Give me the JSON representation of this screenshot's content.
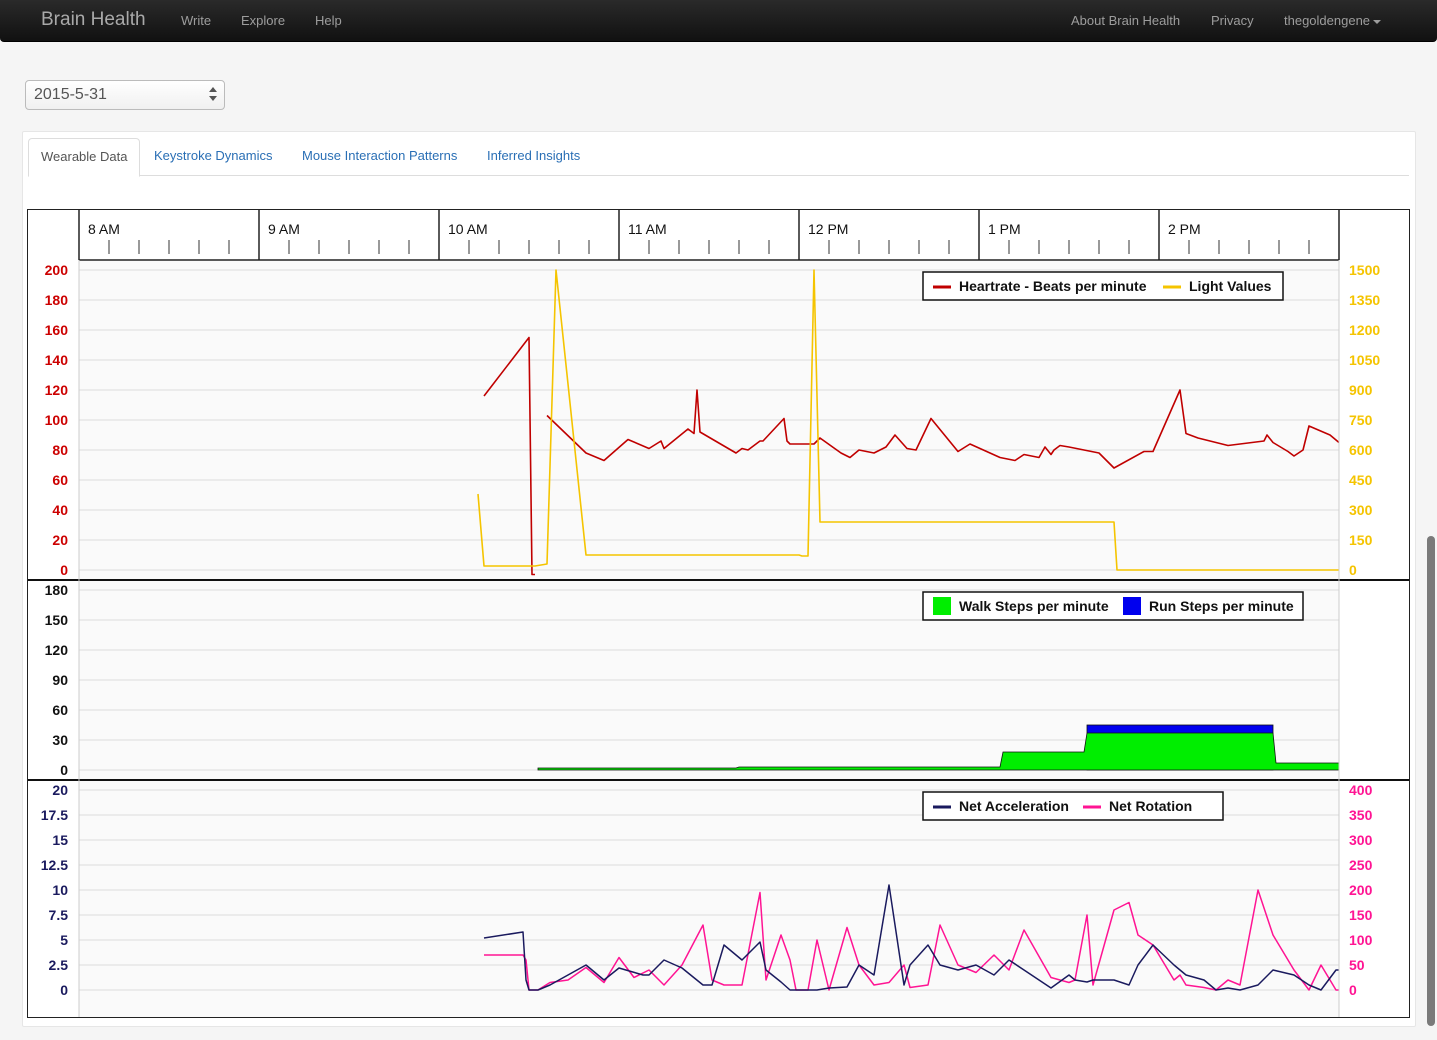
{
  "navbar": {
    "brand": "Brain Health",
    "left_links": [
      "Write",
      "Explore",
      "Help"
    ],
    "right_links": [
      "About Brain Health",
      "Privacy"
    ],
    "user": "thegoldengene"
  },
  "date_select": {
    "value": "2015-5-31"
  },
  "tabs": [
    {
      "label": "Wearable Data",
      "active": true
    },
    {
      "label": "Keystroke Dynamics",
      "active": false
    },
    {
      "label": "Mouse Interaction Patterns",
      "active": false
    },
    {
      "label": "Inferred Insights",
      "active": false
    }
  ],
  "chart_data": [
    {
      "type": "line",
      "x_unit": "minutes since midnight",
      "time_axis_labels": [
        "8 AM",
        "9 AM",
        "10 AM",
        "11 AM",
        "12 PM",
        "1 PM",
        "2 PM"
      ],
      "x_range": [
        465,
        885
      ],
      "y_left": {
        "ticks": [
          0,
          20,
          40,
          60,
          80,
          100,
          120,
          140,
          160,
          180,
          200
        ],
        "range": [
          0,
          200
        ],
        "color": "#cc0000"
      },
      "y_right": {
        "ticks": [
          0,
          150,
          300,
          450,
          600,
          750,
          900,
          1050,
          1200,
          1350,
          1500
        ],
        "range": [
          0,
          1500
        ],
        "color": "#f5c400"
      },
      "legend": {
        "position": "top-right",
        "entries": [
          "Heartrate - Beats per minute",
          "Light Values"
        ]
      },
      "series": [
        {
          "name": "Heartrate - Beats per minute",
          "axis": "left",
          "color": "#c00000",
          "x": [
            600,
            615,
            616,
            617,
            621,
            634,
            640,
            644,
            648,
            655,
            659,
            660,
            668,
            670,
            671,
            672,
            678,
            684,
            686,
            688,
            692,
            693,
            700,
            701,
            702,
            710,
            712,
            719,
            722,
            725,
            730,
            734,
            737,
            741,
            744,
            749,
            758,
            762,
            772,
            777,
            780,
            785,
            787,
            789,
            790,
            792,
            795,
            805,
            810,
            820,
            823,
            832,
            834,
            838,
            848,
            860,
            861,
            863,
            868,
            870,
            873,
            875,
            882,
            885
          ],
          "y": [
            116,
            155,
            -3,
            -3,
            103,
            78,
            73,
            80,
            87,
            81,
            86,
            81,
            94,
            91,
            120,
            92,
            85,
            78,
            81,
            80,
            86,
            86,
            101,
            86,
            84,
            84,
            88,
            78,
            75,
            80,
            78,
            82,
            90,
            81,
            80,
            101,
            79,
            84,
            75,
            73,
            77,
            75,
            82,
            77,
            80,
            83,
            82,
            78,
            68,
            79,
            79,
            120,
            91,
            88,
            83,
            86,
            90,
            85,
            79,
            76,
            80,
            96,
            90,
            85
          ],
          "note_segments": "gap between 617 and 621"
        },
        {
          "name": "Light Values",
          "axis": "right",
          "color": "#f5c400",
          "x": [
            598,
            600,
            617,
            621,
            624,
            634,
            705,
            706,
            707,
            708,
            710,
            712,
            810,
            811,
            812,
            885
          ],
          "y": [
            380,
            20,
            20,
            30,
            1500,
            75,
            75,
            70,
            70,
            70,
            1500,
            240,
            240,
            0,
            0,
            0
          ]
        }
      ]
    },
    {
      "type": "area",
      "y_left": {
        "ticks": [
          0,
          30,
          60,
          90,
          120,
          150,
          180
        ],
        "range": [
          0,
          180
        ]
      },
      "legend": {
        "position": "top-right",
        "entries": [
          "Walk Steps per minute",
          "Run Steps per minute"
        ]
      },
      "series": [
        {
          "name": "Walk Steps per minute",
          "color": "#00ee00",
          "x": [
            618,
            684,
            685,
            772,
            773,
            800,
            801,
            863,
            864,
            885
          ],
          "y": [
            2,
            2,
            3,
            3,
            18,
            18,
            37,
            37,
            7,
            7
          ]
        },
        {
          "name": "Run Steps per minute",
          "color": "#0000ee",
          "x": [
            801,
            863
          ],
          "y": [
            45,
            45
          ]
        }
      ]
    },
    {
      "type": "line",
      "y_left": {
        "ticks": [
          0,
          2.5,
          5,
          7.5,
          10,
          12.5,
          15,
          17.5,
          20
        ],
        "range": [
          0,
          20
        ],
        "color": "#1a1a5e"
      },
      "y_right": {
        "ticks": [
          0,
          50,
          100,
          150,
          200,
          250,
          300,
          350,
          400
        ],
        "range": [
          0,
          400
        ],
        "color": "#ff1493"
      },
      "legend": {
        "position": "top-right",
        "entries": [
          "Net Acceleration",
          "Net Rotation"
        ]
      },
      "series": [
        {
          "name": "Net Acceleration",
          "axis": "left",
          "color": "#1a1a5e",
          "x": [
            600,
            613,
            614,
            615,
            618,
            622,
            628,
            634,
            640,
            645,
            653,
            655,
            660,
            666,
            673,
            676,
            680,
            686,
            692,
            694,
            699,
            702,
            704,
            706,
            708,
            711,
            715,
            721,
            725,
            730,
            735,
            740,
            742,
            748,
            752,
            758,
            764,
            770,
            775,
            780,
            789,
            795,
            797,
            801,
            803,
            810,
            815,
            818,
            823,
            830,
            832,
            834,
            840,
            844,
            848,
            852,
            858,
            863,
            870,
            875,
            879,
            884,
            885
          ],
          "y": [
            5.2,
            5.8,
            1.0,
            0,
            0,
            0.5,
            1.5,
            2.5,
            1.0,
            2.2,
            1.5,
            1.5,
            3.0,
            2.2,
            0.5,
            0.5,
            4.5,
            3.0,
            4.8,
            2.0,
            0.8,
            0,
            0,
            0,
            0,
            0,
            0.2,
            0.3,
            2.5,
            1.5,
            10.5,
            0.5,
            2.5,
            4.5,
            2.5,
            2.0,
            2.5,
            1.5,
            3.0,
            2.0,
            0.2,
            1.5,
            1.0,
            0.8,
            1.0,
            1.0,
            0.5,
            2.5,
            4.5,
            2.5,
            2.0,
            1.5,
            1.0,
            0,
            0.2,
            0,
            0.5,
            2.0,
            1.5,
            0.5,
            0,
            2.0,
            2.0
          ]
        },
        {
          "name": "Net Rotation",
          "axis": "right",
          "color": "#ff1493",
          "x": [
            600,
            613,
            614,
            615,
            618,
            622,
            628,
            634,
            640,
            645,
            650,
            655,
            660,
            666,
            673,
            676,
            680,
            686,
            692,
            694,
            699,
            702,
            704,
            706,
            708,
            711,
            715,
            721,
            725,
            730,
            735,
            740,
            742,
            748,
            752,
            758,
            764,
            770,
            775,
            780,
            789,
            795,
            797,
            801,
            803,
            810,
            815,
            818,
            823,
            830,
            832,
            834,
            840,
            844,
            848,
            852,
            858,
            863,
            870,
            875,
            879,
            884,
            885
          ],
          "y": [
            70,
            70,
            60,
            0,
            0,
            15,
            20,
            45,
            15,
            65,
            25,
            40,
            10,
            50,
            130,
            20,
            10,
            10,
            195,
            20,
            110,
            60,
            0,
            0,
            0,
            100,
            0,
            125,
            50,
            10,
            15,
            50,
            5,
            10,
            130,
            50,
            35,
            70,
            40,
            120,
            25,
            15,
            20,
            150,
            10,
            160,
            175,
            110,
            90,
            20,
            30,
            10,
            5,
            0,
            20,
            10,
            200,
            110,
            40,
            0,
            50,
            0,
            0
          ]
        }
      ]
    }
  ]
}
